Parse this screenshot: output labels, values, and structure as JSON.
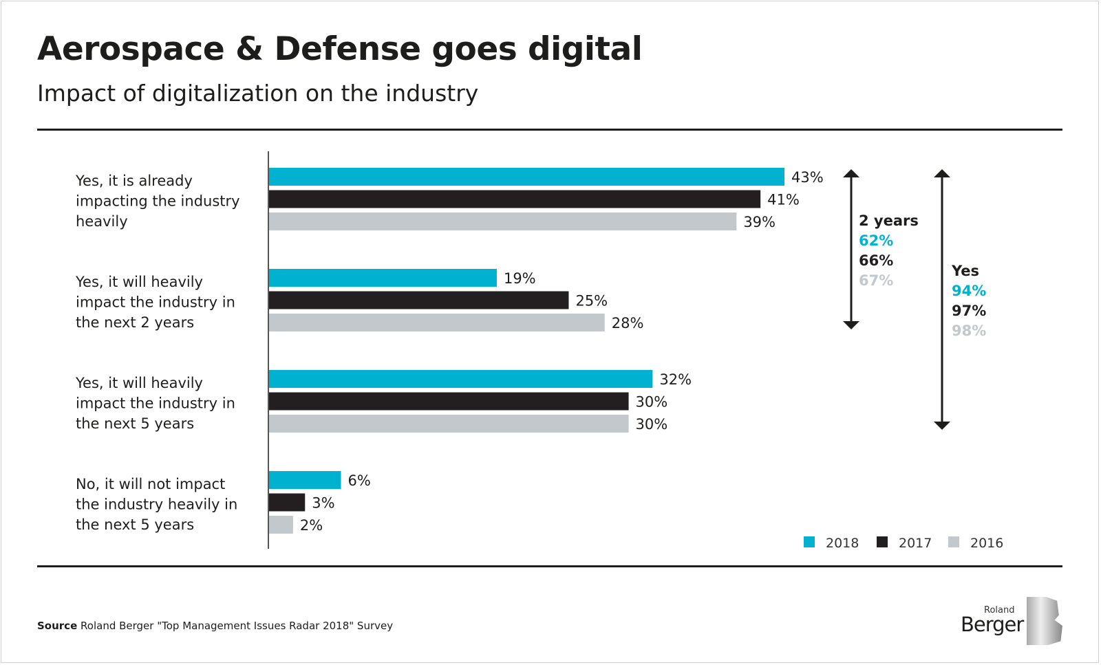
{
  "title": "Aerospace & Defense goes digital",
  "subtitle": "Impact of digitalization on the industry",
  "source_label": "Source",
  "source_text": "Roland Berger \"Top Management Issues Radar 2018\" Survey",
  "logo": {
    "line1": "Roland",
    "line2": "Berger"
  },
  "chart_data": {
    "type": "bar",
    "orientation": "horizontal",
    "unit": "%",
    "xlim": [
      0,
      45
    ],
    "grid": false,
    "legend_position": "bottom-right",
    "categories": [
      [
        "Yes, it is already",
        "impacting the industry",
        "heavily"
      ],
      [
        "Yes, it will heavily",
        "impact the industry in",
        "the next 2 years"
      ],
      [
        "Yes, it will heavily",
        "impact the industry in",
        "the next 5 years"
      ],
      [
        "No, it will not impact",
        "the industry heavily in",
        "the next 5 years"
      ]
    ],
    "series": [
      {
        "name": "2018",
        "color": "#00b2cf",
        "values": [
          43,
          19,
          32,
          6
        ]
      },
      {
        "name": "2017",
        "color": "#231f20",
        "values": [
          41,
          25,
          30,
          3
        ]
      },
      {
        "name": "2016",
        "color": "#c3c8cd",
        "values": [
          39,
          28,
          30,
          2
        ]
      }
    ],
    "annotations": [
      {
        "label": "2 years",
        "spans_categories": [
          0,
          1
        ],
        "values": [
          "62%",
          "66%",
          "67%"
        ]
      },
      {
        "label": "Yes",
        "spans_categories": [
          0,
          2
        ],
        "values": [
          "94%",
          "97%",
          "98%"
        ]
      }
    ]
  }
}
